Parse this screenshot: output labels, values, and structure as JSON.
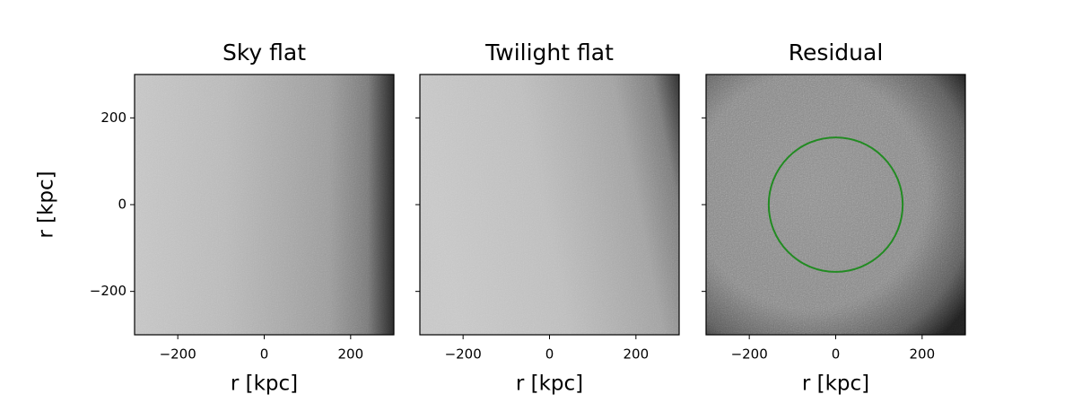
{
  "chart_data": [
    {
      "type": "image",
      "title": "Sky flat",
      "xlabel": "r [kpc]",
      "ylabel": "r [kpc]",
      "colormap": "gray",
      "xlim": [
        -300,
        300
      ],
      "ylim": [
        -300,
        300
      ],
      "xticks": [
        {
          "value": -200,
          "label": "−200"
        },
        0,
        200
      ],
      "yticks": [
        {
          "value": -200,
          "label": "−200"
        },
        0,
        200
      ],
      "ytick_labels": true
    },
    {
      "type": "image",
      "title": "Twilight flat",
      "xlabel": "r [kpc]",
      "colormap": "gray",
      "xlim": [
        -300,
        300
      ],
      "ylim": [
        -300,
        300
      ],
      "xticks": [
        {
          "value": -200,
          "label": "−200"
        },
        0,
        200
      ],
      "yticks": [
        -200,
        0,
        200
      ],
      "ytick_labels": false
    },
    {
      "type": "image",
      "title": "Residual",
      "xlabel": "r [kpc]",
      "colormap": "gray",
      "xlim": [
        -300,
        300
      ],
      "ylim": [
        -300,
        300
      ],
      "xticks": [
        {
          "value": -200,
          "label": "−200"
        },
        0,
        200
      ],
      "yticks": [
        -200,
        0,
        200
      ],
      "ytick_labels": false,
      "circle": {
        "x": 0,
        "y": 0,
        "r": 155,
        "color": "#228b22"
      }
    }
  ]
}
